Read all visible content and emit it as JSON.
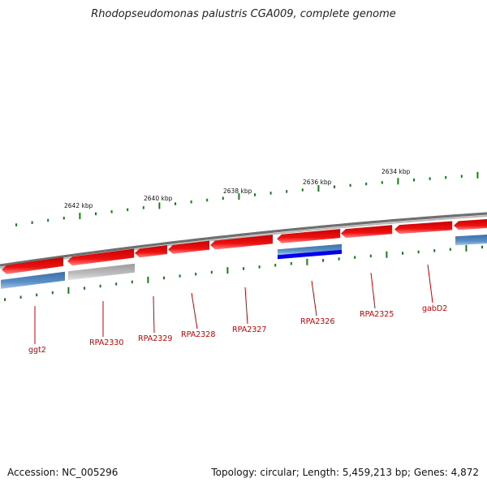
{
  "title": "Rhodopseudomonas palustris CGA009, complete genome",
  "accession": "Accession: NC_005296",
  "summary": "Topology: circular; Length: 5,459,213 bp; Genes: 4,872",
  "colors": {
    "backbone": "#8a8a8a",
    "forward_gene": "#ee1111",
    "reverse_gene": "#4d84bc",
    "reverse_gene_selected": "#0000ee",
    "pseudo_gene": "#bdbdbd",
    "ticks": "#1a7a1a",
    "gene_label": "#cc0000"
  },
  "scale_labels": [
    {
      "text": "2642 kbp"
    },
    {
      "text": "2640 kbp"
    },
    {
      "text": "2638 kbp"
    },
    {
      "text": "2636 kbp"
    },
    {
      "text": "2634 kbp"
    }
  ],
  "gene_labels": [
    {
      "text": "ggt2"
    },
    {
      "text": "RPA2330"
    },
    {
      "text": "RPA2329"
    },
    {
      "text": "RPA2328"
    },
    {
      "text": "RPA2327"
    },
    {
      "text": "RPA2326"
    },
    {
      "text": "RPA2325"
    },
    {
      "text": "gabD2"
    }
  ]
}
